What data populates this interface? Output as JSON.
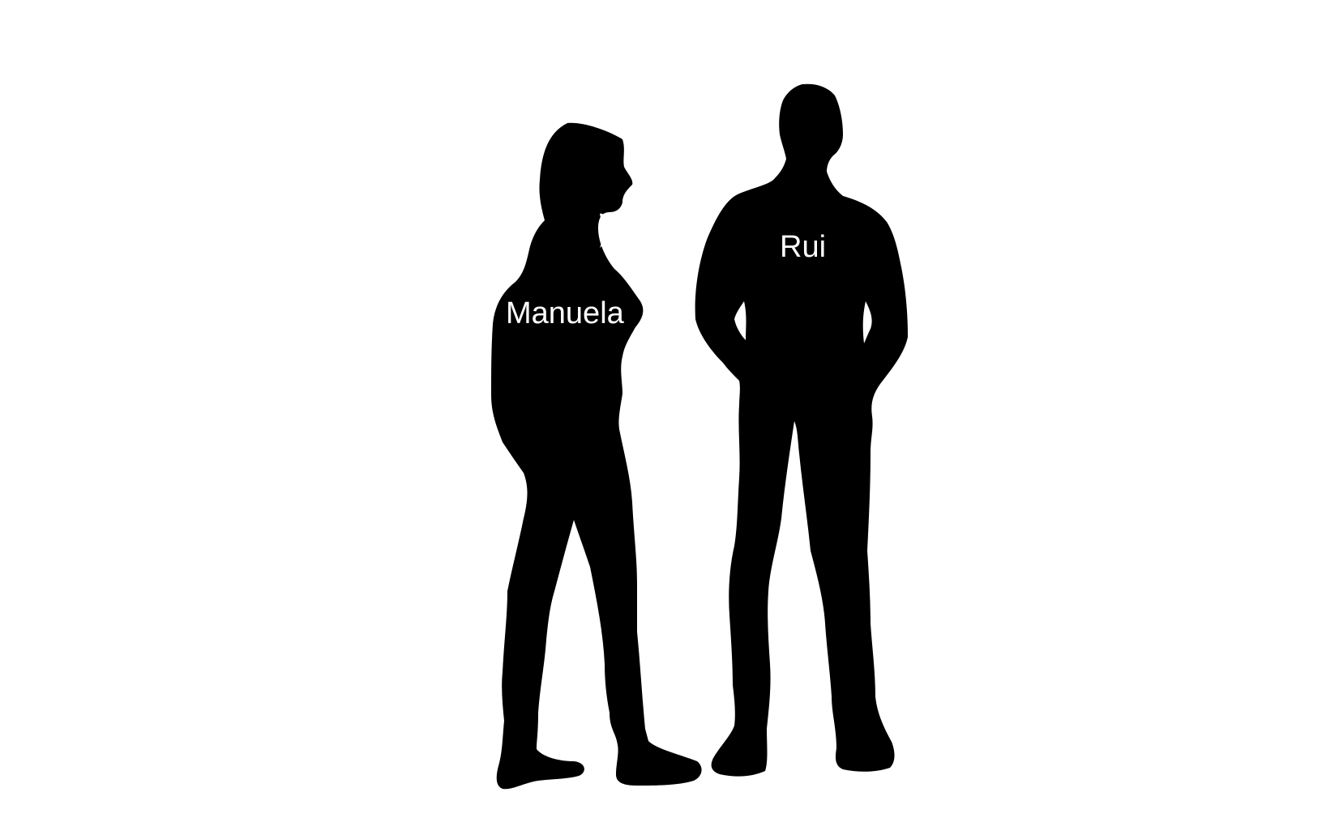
{
  "figures": [
    {
      "id": "woman",
      "label": "Manuela",
      "icon": "woman-silhouette-icon"
    },
    {
      "id": "man",
      "label": "Rui",
      "icon": "man-silhouette-icon"
    }
  ],
  "colors": {
    "background": "#ffffff",
    "silhouette": "#000000",
    "label": "#ffffff"
  }
}
